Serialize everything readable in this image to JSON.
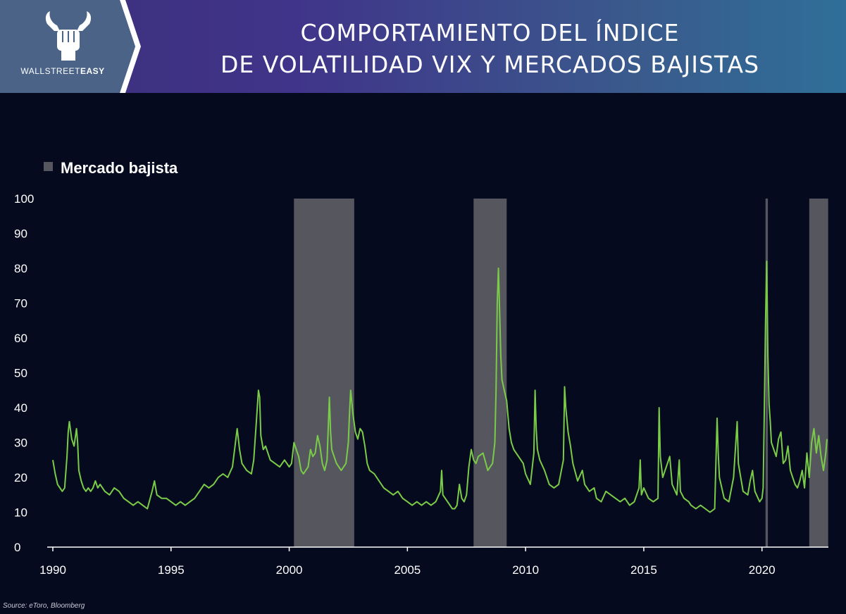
{
  "brand": {
    "name_part1": "WALLSTREET",
    "name_part2": "EASY",
    "logo_icon": "bull-fist-icon"
  },
  "header": {
    "title_line1": "COMPORTAMIENTO DEL ÍNDICE",
    "title_line2": "DE VOLATILIDAD VIX Y MERCADOS BAJISTAS"
  },
  "source": "Source: eToro, Bloomberg",
  "colors": {
    "line": "#7acc48",
    "bear_band": "#56565f",
    "background": "#050a1f",
    "axis": "#ffffff"
  },
  "chart_data": {
    "type": "line",
    "title": "",
    "xlabel": "",
    "ylabel": "",
    "xlim": [
      1990,
      2022.75
    ],
    "ylim": [
      0,
      100
    ],
    "yticks": [
      0,
      10,
      20,
      30,
      40,
      50,
      60,
      70,
      80,
      90,
      100
    ],
    "xticks": [
      1990,
      1995,
      2000,
      2005,
      2010,
      2015,
      2020
    ],
    "legend": {
      "label": "Mercado bajista",
      "position": "top-left"
    },
    "bear_markets": [
      [
        2000.2,
        2002.75
      ],
      [
        2007.8,
        2009.2
      ],
      [
        2020.15,
        2020.25
      ],
      [
        2022.0,
        2022.8
      ]
    ],
    "series": [
      {
        "points": [
          [
            1990.0,
            25
          ],
          [
            1990.1,
            21
          ],
          [
            1990.2,
            18
          ],
          [
            1990.3,
            17
          ],
          [
            1990.4,
            16
          ],
          [
            1990.5,
            17
          ],
          [
            1990.6,
            26
          ],
          [
            1990.65,
            33
          ],
          [
            1990.7,
            36
          ],
          [
            1990.8,
            31
          ],
          [
            1990.9,
            29
          ],
          [
            1991.0,
            34
          ],
          [
            1991.05,
            30
          ],
          [
            1991.1,
            22
          ],
          [
            1991.2,
            19
          ],
          [
            1991.3,
            17
          ],
          [
            1991.4,
            16
          ],
          [
            1991.5,
            17
          ],
          [
            1991.6,
            16
          ],
          [
            1991.7,
            17
          ],
          [
            1991.8,
            19
          ],
          [
            1991.9,
            17
          ],
          [
            1992.0,
            18
          ],
          [
            1992.2,
            16
          ],
          [
            1992.4,
            15
          ],
          [
            1992.6,
            17
          ],
          [
            1992.8,
            16
          ],
          [
            1993.0,
            14
          ],
          [
            1993.2,
            13
          ],
          [
            1993.4,
            12
          ],
          [
            1993.6,
            13
          ],
          [
            1993.8,
            12
          ],
          [
            1994.0,
            11
          ],
          [
            1994.2,
            16
          ],
          [
            1994.3,
            19
          ],
          [
            1994.4,
            15
          ],
          [
            1994.6,
            14
          ],
          [
            1994.8,
            14
          ],
          [
            1995.0,
            13
          ],
          [
            1995.2,
            12
          ],
          [
            1995.4,
            13
          ],
          [
            1995.6,
            12
          ],
          [
            1995.8,
            13
          ],
          [
            1996.0,
            14
          ],
          [
            1996.2,
            16
          ],
          [
            1996.4,
            18
          ],
          [
            1996.6,
            17
          ],
          [
            1996.8,
            18
          ],
          [
            1997.0,
            20
          ],
          [
            1997.2,
            21
          ],
          [
            1997.4,
            20
          ],
          [
            1997.6,
            23
          ],
          [
            1997.8,
            34
          ],
          [
            1997.9,
            28
          ],
          [
            1998.0,
            24
          ],
          [
            1998.2,
            22
          ],
          [
            1998.4,
            21
          ],
          [
            1998.5,
            25
          ],
          [
            1998.6,
            35
          ],
          [
            1998.7,
            45
          ],
          [
            1998.75,
            43
          ],
          [
            1998.8,
            32
          ],
          [
            1998.9,
            28
          ],
          [
            1999.0,
            29
          ],
          [
            1999.2,
            25
          ],
          [
            1999.4,
            24
          ],
          [
            1999.6,
            23
          ],
          [
            1999.8,
            25
          ],
          [
            2000.0,
            23
          ],
          [
            2000.1,
            24
          ],
          [
            2000.2,
            30
          ],
          [
            2000.3,
            28
          ],
          [
            2000.4,
            26
          ],
          [
            2000.5,
            22
          ],
          [
            2000.6,
            21
          ],
          [
            2000.8,
            23
          ],
          [
            2000.9,
            28
          ],
          [
            2001.0,
            26
          ],
          [
            2001.1,
            27
          ],
          [
            2001.2,
            32
          ],
          [
            2001.3,
            29
          ],
          [
            2001.4,
            24
          ],
          [
            2001.5,
            22
          ],
          [
            2001.6,
            25
          ],
          [
            2001.7,
            43
          ],
          [
            2001.75,
            33
          ],
          [
            2001.8,
            28
          ],
          [
            2001.9,
            26
          ],
          [
            2002.0,
            24
          ],
          [
            2002.2,
            22
          ],
          [
            2002.4,
            24
          ],
          [
            2002.5,
            30
          ],
          [
            2002.55,
            38
          ],
          [
            2002.6,
            45
          ],
          [
            2002.7,
            38
          ],
          [
            2002.8,
            33
          ],
          [
            2002.9,
            31
          ],
          [
            2003.0,
            34
          ],
          [
            2003.1,
            33
          ],
          [
            2003.2,
            29
          ],
          [
            2003.3,
            24
          ],
          [
            2003.4,
            22
          ],
          [
            2003.6,
            21
          ],
          [
            2003.8,
            19
          ],
          [
            2004.0,
            17
          ],
          [
            2004.2,
            16
          ],
          [
            2004.4,
            15
          ],
          [
            2004.6,
            16
          ],
          [
            2004.8,
            14
          ],
          [
            2005.0,
            13
          ],
          [
            2005.2,
            12
          ],
          [
            2005.4,
            13
          ],
          [
            2005.6,
            12
          ],
          [
            2005.8,
            13
          ],
          [
            2006.0,
            12
          ],
          [
            2006.2,
            13
          ],
          [
            2006.4,
            16
          ],
          [
            2006.45,
            22
          ],
          [
            2006.5,
            15
          ],
          [
            2006.7,
            13
          ],
          [
            2006.9,
            11
          ],
          [
            2007.0,
            11
          ],
          [
            2007.1,
            12
          ],
          [
            2007.2,
            18
          ],
          [
            2007.3,
            14
          ],
          [
            2007.4,
            13
          ],
          [
            2007.5,
            15
          ],
          [
            2007.6,
            23
          ],
          [
            2007.7,
            28
          ],
          [
            2007.8,
            25
          ],
          [
            2007.9,
            24
          ],
          [
            2008.0,
            26
          ],
          [
            2008.2,
            27
          ],
          [
            2008.4,
            22
          ],
          [
            2008.6,
            24
          ],
          [
            2008.7,
            30
          ],
          [
            2008.75,
            45
          ],
          [
            2008.8,
            70
          ],
          [
            2008.85,
            80
          ],
          [
            2008.9,
            68
          ],
          [
            2008.95,
            55
          ],
          [
            2009.0,
            48
          ],
          [
            2009.1,
            45
          ],
          [
            2009.2,
            42
          ],
          [
            2009.25,
            38
          ],
          [
            2009.3,
            34
          ],
          [
            2009.4,
            30
          ],
          [
            2009.5,
            28
          ],
          [
            2009.7,
            26
          ],
          [
            2009.9,
            24
          ],
          [
            2010.0,
            21
          ],
          [
            2010.2,
            18
          ],
          [
            2010.35,
            27
          ],
          [
            2010.4,
            45
          ],
          [
            2010.45,
            34
          ],
          [
            2010.5,
            28
          ],
          [
            2010.6,
            25
          ],
          [
            2010.8,
            22
          ],
          [
            2011.0,
            18
          ],
          [
            2011.2,
            17
          ],
          [
            2011.4,
            18
          ],
          [
            2011.6,
            25
          ],
          [
            2011.65,
            46
          ],
          [
            2011.7,
            40
          ],
          [
            2011.8,
            33
          ],
          [
            2011.9,
            29
          ],
          [
            2012.0,
            24
          ],
          [
            2012.2,
            19
          ],
          [
            2012.4,
            22
          ],
          [
            2012.5,
            18
          ],
          [
            2012.7,
            16
          ],
          [
            2012.9,
            17
          ],
          [
            2013.0,
            14
          ],
          [
            2013.2,
            13
          ],
          [
            2013.4,
            16
          ],
          [
            2013.6,
            15
          ],
          [
            2013.8,
            14
          ],
          [
            2014.0,
            13
          ],
          [
            2014.2,
            14
          ],
          [
            2014.4,
            12
          ],
          [
            2014.6,
            13
          ],
          [
            2014.8,
            17
          ],
          [
            2014.85,
            25
          ],
          [
            2014.9,
            15
          ],
          [
            2015.0,
            17
          ],
          [
            2015.2,
            14
          ],
          [
            2015.4,
            13
          ],
          [
            2015.6,
            14
          ],
          [
            2015.65,
            40
          ],
          [
            2015.7,
            26
          ],
          [
            2015.8,
            20
          ],
          [
            2016.0,
            24
          ],
          [
            2016.1,
            26
          ],
          [
            2016.2,
            18
          ],
          [
            2016.4,
            15
          ],
          [
            2016.5,
            25
          ],
          [
            2016.55,
            16
          ],
          [
            2016.7,
            14
          ],
          [
            2016.9,
            13
          ],
          [
            2017.0,
            12
          ],
          [
            2017.2,
            11
          ],
          [
            2017.4,
            12
          ],
          [
            2017.6,
            11
          ],
          [
            2017.8,
            10
          ],
          [
            2018.0,
            11
          ],
          [
            2018.1,
            37
          ],
          [
            2018.15,
            27
          ],
          [
            2018.2,
            20
          ],
          [
            2018.4,
            14
          ],
          [
            2018.6,
            13
          ],
          [
            2018.8,
            20
          ],
          [
            2018.95,
            36
          ],
          [
            2019.0,
            24
          ],
          [
            2019.2,
            16
          ],
          [
            2019.4,
            15
          ],
          [
            2019.5,
            19
          ],
          [
            2019.6,
            22
          ],
          [
            2019.7,
            16
          ],
          [
            2019.9,
            13
          ],
          [
            2020.0,
            14
          ],
          [
            2020.05,
            17
          ],
          [
            2020.1,
            40
          ],
          [
            2020.15,
            65
          ],
          [
            2020.2,
            82
          ],
          [
            2020.25,
            55
          ],
          [
            2020.3,
            41
          ],
          [
            2020.35,
            36
          ],
          [
            2020.4,
            30
          ],
          [
            2020.5,
            28
          ],
          [
            2020.6,
            26
          ],
          [
            2020.7,
            31
          ],
          [
            2020.8,
            33
          ],
          [
            2020.9,
            24
          ],
          [
            2021.0,
            25
          ],
          [
            2021.1,
            29
          ],
          [
            2021.2,
            22
          ],
          [
            2021.3,
            20
          ],
          [
            2021.4,
            18
          ],
          [
            2021.5,
            17
          ],
          [
            2021.6,
            19
          ],
          [
            2021.7,
            22
          ],
          [
            2021.8,
            17
          ],
          [
            2021.9,
            27
          ],
          [
            2022.0,
            20
          ],
          [
            2022.1,
            30
          ],
          [
            2022.2,
            34
          ],
          [
            2022.3,
            27
          ],
          [
            2022.4,
            32
          ],
          [
            2022.5,
            26
          ],
          [
            2022.6,
            22
          ],
          [
            2022.7,
            27
          ],
          [
            2022.75,
            31
          ]
        ]
      }
    ]
  }
}
